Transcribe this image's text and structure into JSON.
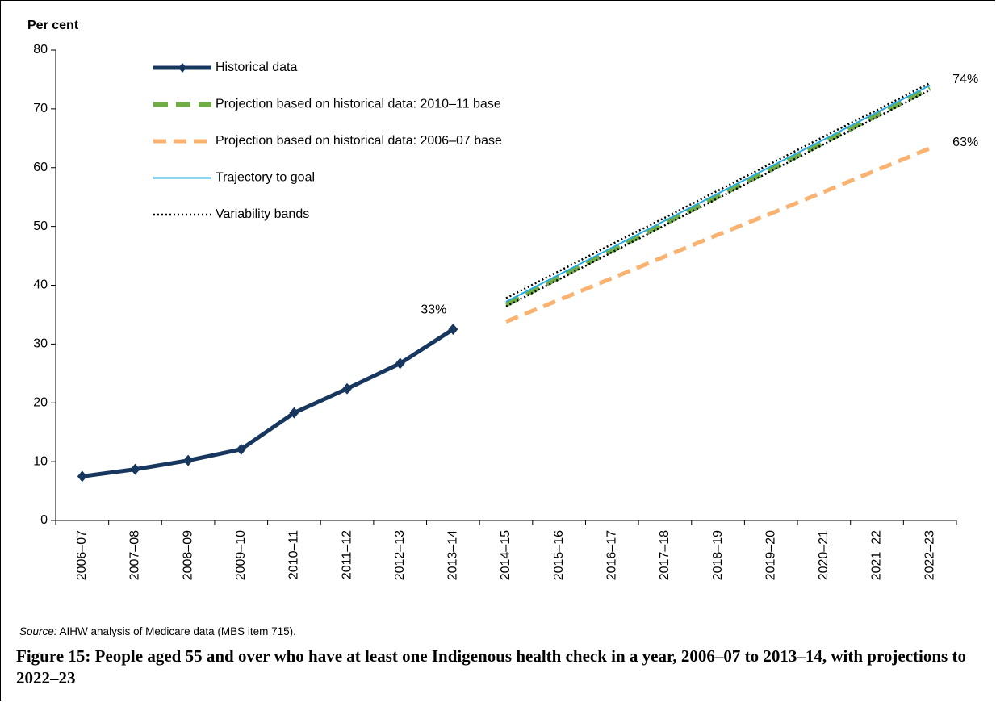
{
  "chart_data": {
    "type": "line",
    "y_label": "Per cent",
    "categories": [
      "2006–07",
      "2007–08",
      "2008–09",
      "2009–10",
      "2010–11",
      "2011–12",
      "2012–13",
      "2013–14",
      "2014–15",
      "2015–16",
      "2016–17",
      "2017–18",
      "2018–19",
      "2019–20",
      "2020–21",
      "2021–22",
      "2022–23"
    ],
    "series": [
      {
        "name": "Historical data",
        "color": "#17375e",
        "style": "solid-markers",
        "values": [
          7.5,
          8.7,
          10.2,
          12.1,
          18.3,
          22.4,
          26.7,
          32.5,
          null,
          null,
          null,
          null,
          null,
          null,
          null,
          null,
          null
        ],
        "value_labels": [
          null,
          null,
          null,
          null,
          null,
          null,
          null,
          "33%",
          null,
          null,
          null,
          null,
          null,
          null,
          null,
          null,
          null
        ]
      },
      {
        "name": "Projection based on historical data: 2010–11 base",
        "color": "#70ad47",
        "style": "dash-thick",
        "values": [
          null,
          null,
          null,
          null,
          null,
          null,
          null,
          null,
          36.7,
          41.3,
          45.9,
          50.5,
          55.1,
          59.7,
          64.3,
          68.9,
          73.5
        ]
      },
      {
        "name": "Projection based on historical data: 2006–07 base",
        "color": "#f9b26f",
        "style": "dash",
        "values": [
          null,
          null,
          null,
          null,
          null,
          null,
          null,
          null,
          33.8,
          37.5,
          41.2,
          44.9,
          48.6,
          52.2,
          55.9,
          59.6,
          63.3
        ],
        "value_labels": [
          null,
          null,
          null,
          null,
          null,
          null,
          null,
          null,
          null,
          null,
          null,
          null,
          null,
          null,
          null,
          null,
          "63%"
        ]
      },
      {
        "name": "Trajectory to goal",
        "color": "#29abe2",
        "style": "thin",
        "values": [
          null,
          null,
          null,
          null,
          null,
          null,
          null,
          null,
          37.2,
          41.8,
          46.4,
          51.0,
          55.6,
          60.2,
          64.8,
          69.4,
          74.0
        ],
        "value_labels": [
          null,
          null,
          null,
          null,
          null,
          null,
          null,
          null,
          null,
          null,
          null,
          null,
          null,
          null,
          null,
          null,
          "74%"
        ]
      },
      {
        "name": "Variability bands",
        "color": "#000000",
        "style": "dot",
        "values": [
          null,
          null,
          null,
          null,
          null,
          null,
          null,
          null,
          37.8,
          42.4,
          47.0,
          51.5,
          56.1,
          60.7,
          65.3,
          69.8,
          74.4
        ],
        "lower": [
          null,
          null,
          null,
          null,
          null,
          null,
          null,
          null,
          36.4,
          41.0,
          45.6,
          50.2,
          54.8,
          59.4,
          64.0,
          68.6,
          73.2
        ]
      }
    ],
    "ylim": [
      0,
      80
    ],
    "yticks": [
      0,
      10,
      20,
      30,
      40,
      50,
      60,
      70,
      80
    ],
    "grid": false,
    "legend": "top-left"
  },
  "source": {
    "prefix": "Source:",
    "text": "AIHW analysis of Medicare data (MBS item 715)."
  },
  "caption": "Figure 15: People aged 55 and over who have at least one Indigenous health check in a year, 2006–07 to 2013–14, with projections to 2022–23"
}
